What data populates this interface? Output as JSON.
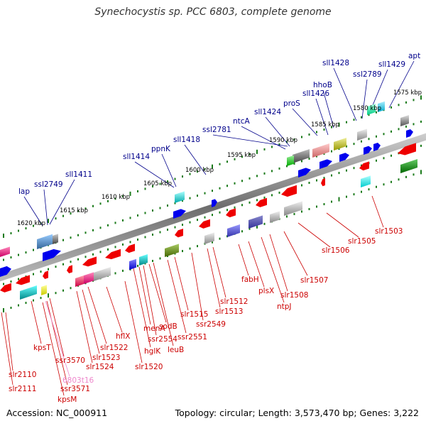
{
  "title": "Synechocystis sp. PCC 6803, complete genome",
  "footer": {
    "accession": "Accession: NC_000911",
    "summary": "Topology: circular; Length: 3,573,470 bp; Genes: 3,222"
  },
  "colors": {
    "forward_label": "#00008b",
    "reverse_label": "#cc0000",
    "rna_label": "#ee88cc",
    "tick": "#1a7a1a",
    "backbone": "#888888"
  },
  "scale_labels": [
    "1575 kbp",
    "1580 kbp",
    "1585 kbp",
    "1590 kbp",
    "1595 kbp",
    "1600 kbp",
    "1605 kbp",
    "1610 kbp",
    "1615 kbp",
    "1620 kbp"
  ],
  "forward_genes": [
    "apt",
    "sll1429",
    "ssl2789",
    "sll1428",
    "hhoB",
    "sll1426",
    "proS",
    "sll1424",
    "ntcA",
    "ssl2781",
    "sll1418",
    "ppnK",
    "sll1414",
    "sll1411",
    "ssl2749",
    "lap"
  ],
  "reverse_genes": [
    "slr1503",
    "slr1505",
    "slr1506",
    "slr1507",
    "slr1508",
    "ntpJ",
    "plsX",
    "fabH",
    "slr1512",
    "slr1513",
    "ssr2549",
    "slr1515",
    "ssr2551",
    "leuB",
    "sodB",
    "ssr2554",
    "menA",
    "hglK",
    "hflX",
    "slr1520",
    "slr1522",
    "slr1523",
    "slr1524",
    "ssr3570",
    "ssr3571",
    "kpsT",
    "kpsM",
    "slr2110",
    "slr2111"
  ],
  "rna_genes": [
    "6803t16"
  ]
}
